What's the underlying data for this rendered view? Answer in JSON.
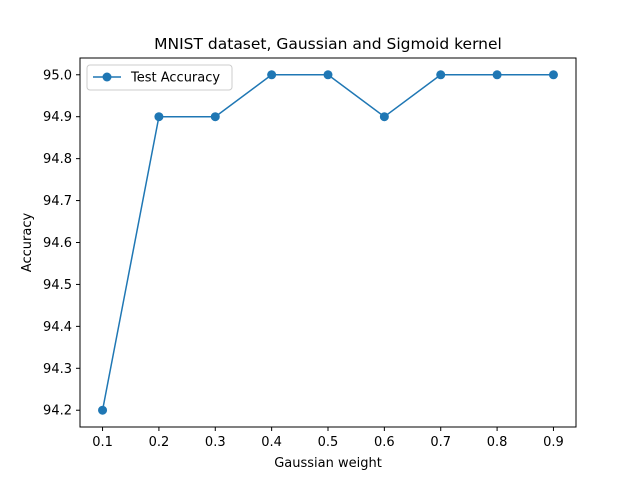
{
  "chart_data": {
    "type": "line",
    "title": "MNIST dataset, Gaussian and Sigmoid kernel",
    "xlabel": "Gaussian weight",
    "ylabel": "Accuracy",
    "x": [
      0.1,
      0.2,
      0.3,
      0.4,
      0.5,
      0.6,
      0.7,
      0.8,
      0.9
    ],
    "series": [
      {
        "name": "Test Accuracy",
        "values": [
          94.2,
          94.9,
          94.9,
          95.0,
          95.0,
          94.9,
          95.0,
          95.0,
          95.0
        ],
        "color": "#1f77b4",
        "marker": "circle"
      }
    ],
    "xticks": [
      "0.1",
      "0.2",
      "0.3",
      "0.4",
      "0.5",
      "0.6",
      "0.7",
      "0.8",
      "0.9"
    ],
    "xtick_values": [
      0.1,
      0.2,
      0.3,
      0.4,
      0.5,
      0.6,
      0.7,
      0.8,
      0.9
    ],
    "yticks": [
      "94.2",
      "94.3",
      "94.4",
      "94.5",
      "94.6",
      "94.7",
      "94.8",
      "94.9",
      "95.0"
    ],
    "ytick_values": [
      94.2,
      94.3,
      94.4,
      94.5,
      94.6,
      94.7,
      94.8,
      94.9,
      95.0
    ],
    "xlim": [
      0.06,
      0.94
    ],
    "ylim": [
      94.16,
      95.04
    ],
    "grid": false,
    "legend_position": "top-left"
  }
}
